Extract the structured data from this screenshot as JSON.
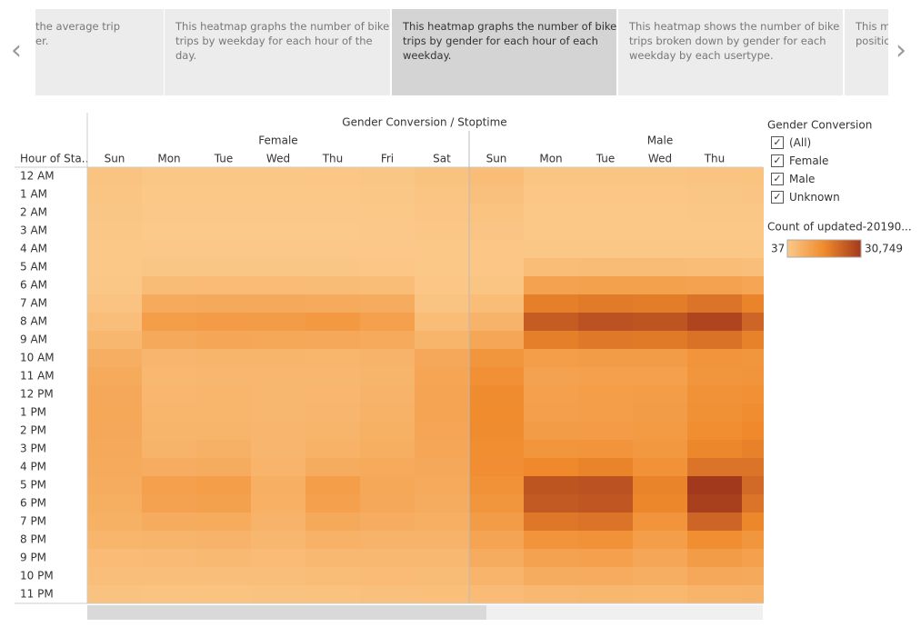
{
  "story_points": {
    "selected": 2,
    "items": [
      {
        "lines": [
          "the average trip",
          "er."
        ]
      },
      {
        "lines": [
          "This heatmap graphs the number of bike",
          "trips by weekday for each hour of the",
          "day."
        ]
      },
      {
        "lines": [
          "This heatmap graphs the number of bike",
          "trips by gender for each hour of each",
          "weekday."
        ]
      },
      {
        "lines": [
          "This heatmap shows the number of bike",
          "trips broken down by gender for each",
          "weekday by each usertype."
        ]
      },
      {
        "lines": [
          "This ma",
          "positic"
        ]
      }
    ]
  },
  "chart_data": {
    "type": "heatmap",
    "title": "Gender Conversion / Stoptime",
    "y_label": "Hour of Sta..",
    "columns": [
      {
        "group": "Female",
        "day": "Sun"
      },
      {
        "group": "Female",
        "day": "Mon"
      },
      {
        "group": "Female",
        "day": "Tue"
      },
      {
        "group": "Female",
        "day": "Wed"
      },
      {
        "group": "Female",
        "day": "Thu"
      },
      {
        "group": "Female",
        "day": "Fri"
      },
      {
        "group": "Female",
        "day": "Sat"
      },
      {
        "group": "Male",
        "day": "Sun"
      },
      {
        "group": "Male",
        "day": "Mon"
      },
      {
        "group": "Male",
        "day": "Tue"
      },
      {
        "group": "Male",
        "day": "Wed"
      },
      {
        "group": "Male",
        "day": "Thu"
      },
      {
        "group": "Male",
        "day": null
      }
    ],
    "rows": [
      "12 AM",
      "1 AM",
      "2 AM",
      "3 AM",
      "4 AM",
      "5 AM",
      "6 AM",
      "7 AM",
      "8 AM",
      "9 AM",
      "10 AM",
      "11 AM",
      "12 PM",
      "1 PM",
      "2 PM",
      "3 PM",
      "4 PM",
      "5 PM",
      "6 PM",
      "7 PM",
      "8 PM",
      "9 PM",
      "10 PM",
      "11 PM"
    ],
    "values": [
      [
        1500,
        600,
        600,
        600,
        700,
        800,
        1800,
        3000,
        1200,
        1200,
        1300,
        1400,
        1600
      ],
      [
        1100,
        300,
        300,
        300,
        400,
        500,
        1300,
        2200,
        700,
        700,
        700,
        800,
        1000
      ],
      [
        800,
        200,
        200,
        200,
        200,
        300,
        900,
        1600,
        400,
        400,
        400,
        500,
        600
      ],
      [
        500,
        100,
        100,
        100,
        100,
        200,
        600,
        1000,
        300,
        300,
        300,
        300,
        400
      ],
      [
        300,
        200,
        200,
        200,
        200,
        200,
        300,
        700,
        600,
        600,
        600,
        600,
        600
      ],
      [
        300,
        800,
        800,
        800,
        800,
        700,
        300,
        700,
        3000,
        3100,
        3100,
        3000,
        2800
      ],
      [
        600,
        3200,
        3400,
        3400,
        3300,
        3000,
        700,
        1300,
        9500,
        9900,
        9800,
        9600,
        8900
      ],
      [
        1400,
        7500,
        7900,
        7800,
        7700,
        7000,
        1500,
        3000,
        17500,
        18200,
        17900,
        19500,
        16500
      ],
      [
        2800,
        10500,
        11200,
        11000,
        11800,
        10000,
        3000,
        5500,
        24000,
        26000,
        25500,
        28500,
        22500
      ],
      [
        4500,
        7800,
        8300,
        8200,
        8100,
        7600,
        5000,
        8500,
        17500,
        18800,
        18500,
        20000,
        17000
      ],
      [
        6500,
        4800,
        5000,
        5000,
        4900,
        5300,
        8000,
        12500,
        10500,
        11000,
        11000,
        13000,
        12500
      ],
      [
        7500,
        4300,
        4500,
        4400,
        4400,
        5000,
        8800,
        14000,
        9600,
        10000,
        10000,
        12500,
        13000
      ],
      [
        8000,
        4600,
        4700,
        4400,
        4600,
        5300,
        9000,
        14800,
        10000,
        10500,
        10800,
        13500,
        14000
      ],
      [
        8200,
        4700,
        4700,
        4500,
        4800,
        5600,
        9000,
        15000,
        10300,
        10500,
        11000,
        13800,
        14600
      ],
      [
        8000,
        5000,
        5000,
        4800,
        5100,
        6000,
        8700,
        14800,
        11000,
        11200,
        11500,
        14500,
        15500
      ],
      [
        7800,
        5500,
        5800,
        4800,
        5600,
        6700,
        8400,
        14500,
        12500,
        13000,
        12000,
        16000,
        17000
      ],
      [
        7600,
        6800,
        7200,
        5200,
        7200,
        7600,
        8100,
        14300,
        15500,
        16500,
        13500,
        19500,
        19500
      ],
      [
        7200,
        10000,
        10500,
        6300,
        10500,
        8200,
        7600,
        13500,
        25500,
        26000,
        16500,
        30749,
        21500
      ],
      [
        6700,
        9500,
        9800,
        6200,
        10000,
        8000,
        7000,
        12500,
        24500,
        25000,
        16000,
        29500,
        19500
      ],
      [
        6000,
        7000,
        7400,
        5300,
        7800,
        6800,
        6300,
        11000,
        19000,
        19500,
        13000,
        22500,
        16000
      ],
      [
        4700,
        5000,
        5300,
        4400,
        5600,
        5400,
        5300,
        9000,
        13000,
        13500,
        10500,
        14500,
        12500
      ],
      [
        3500,
        3700,
        3900,
        3400,
        4100,
        4200,
        4200,
        7000,
        9500,
        10000,
        8500,
        11000,
        10000
      ],
      [
        2600,
        2600,
        2800,
        2600,
        3000,
        3400,
        3300,
        5200,
        7000,
        7300,
        6500,
        8000,
        7800
      ],
      [
        1700,
        1500,
        1600,
        1700,
        1900,
        2400,
        2500,
        3500,
        4200,
        4500,
        4300,
        5200,
        5300
      ]
    ],
    "colors": [
      "#fbc98a",
      "#f08a2c",
      "#a3391c"
    ],
    "color_legend_title": "Count of updated-20190...",
    "color_range": [
      {
        "value": 37,
        "label": "37"
      },
      {
        "value": 30749,
        "label": "30,749"
      }
    ]
  },
  "filter": {
    "title": "Gender Conversion",
    "options": [
      "(All)",
      "Female",
      "Male",
      "Unknown"
    ]
  }
}
